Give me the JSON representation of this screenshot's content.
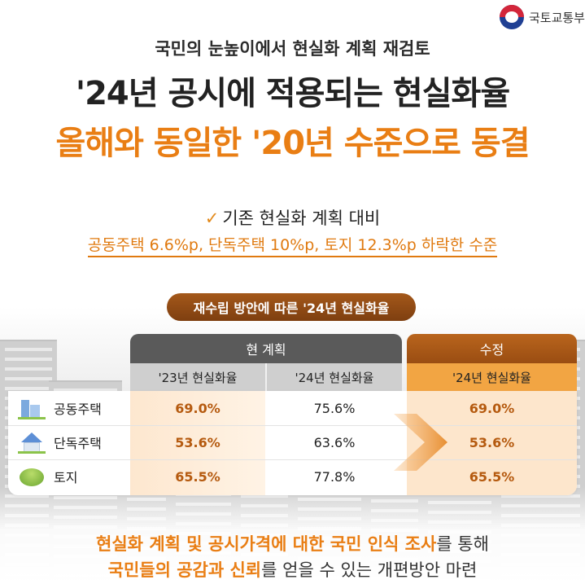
{
  "brand": {
    "logo_text": "국토교통부"
  },
  "headline": {
    "sub": "국민의 눈높이에서 현실화 계획 재검토",
    "main": "'24년 공시에 적용되는 현실화율",
    "highlight": "올해와 동일한 '20년 수준으로 동결"
  },
  "summary": {
    "check_icon": "✓",
    "line1": "기존 현실화 계획 대비",
    "line2": "공동주택 6.6%p, 단독주택 10%p, 토지 12.3%p 하락한 수준"
  },
  "table": {
    "title": "재수립 방안에 따른 '24년 현실화율",
    "group_current": "현 계획",
    "group_revised": "수정",
    "columns": [
      "'23년 현실화율",
      "'24년 현실화율",
      "'24년 현실화율"
    ],
    "rows": [
      {
        "label": "공동주택",
        "icon": "apartment-icon",
        "values": [
          "69.0%",
          "75.6%",
          "69.0%"
        ]
      },
      {
        "label": "단독주택",
        "icon": "house-icon",
        "values": [
          "53.6%",
          "63.6%",
          "53.6%"
        ]
      },
      {
        "label": "토지",
        "icon": "land-icon",
        "values": [
          "65.5%",
          "77.8%",
          "65.5%"
        ]
      }
    ]
  },
  "footer": {
    "line1_em": "현실화 계획 및 공시가격에 대한 국민 인식 조사",
    "line1_rest": "를 통해",
    "line2_em": "국민들의 공감과 신뢰",
    "line2_rest": "를 얻을 수 있는 개편방안 마련"
  },
  "colors": {
    "accent": "#e97e14",
    "dark_header": "#5a5a5a",
    "brown": "#9a4d12"
  }
}
